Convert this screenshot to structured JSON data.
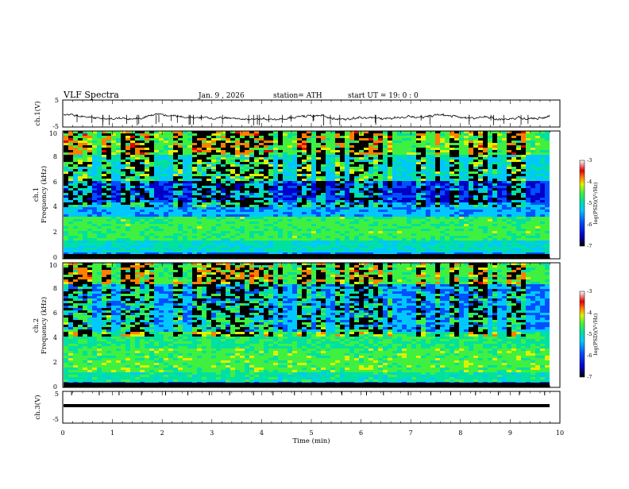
{
  "header": {
    "title": "VLF  Spectra",
    "date": "Jan.  9  , 2026",
    "station": "station= ATH",
    "start": "start  UT  =    19: 0   : 0"
  },
  "colors": {
    "ink": "#000000",
    "colormap": [
      "#000000",
      "#0000c8",
      "#0050ff",
      "#00c8ff",
      "#00e0a0",
      "#40f040",
      "#e0f000",
      "#ff8000",
      "#e00000",
      "#ffffff"
    ]
  },
  "chart_data": {
    "type": "heatmap",
    "xlabel": "Time  (min)",
    "xlim": [
      0,
      10
    ],
    "x_ticks": [
      "0",
      "1",
      "2",
      "3",
      "4",
      "5",
      "6",
      "7",
      "8",
      "9",
      "10"
    ],
    "ch1_wave": {
      "ylabel": "ch.1(V)",
      "y_ticks": [
        "5",
        "-5"
      ],
      "ylim": [
        -5,
        5
      ]
    },
    "ch1_spectrogram": {
      "ylabel_channel": "ch.1",
      "ylabel": "Frequency  (kHz)",
      "y_ticks": [
        "0",
        "2",
        "4",
        "6",
        "8",
        "10"
      ],
      "ylim": [
        0,
        10
      ],
      "colorbar_label": "log(PSD)(V²/Hz)",
      "colorbar_ticks": [
        "-3",
        "-4",
        "-5",
        "-6",
        "-7"
      ]
    },
    "ch2_spectrogram": {
      "ylabel_channel": "ch.2",
      "ylabel": "Frequency  (kHz)",
      "y_ticks": [
        "0",
        "2",
        "4",
        "6",
        "8",
        "10"
      ],
      "ylim": [
        0,
        10
      ],
      "colorbar_label": "log(PSD)(V²/Hz)",
      "colorbar_ticks": [
        "-3",
        "-4",
        "-5",
        "-6",
        "-7"
      ]
    },
    "ch3_wave": {
      "ylabel": "ch.3(V)",
      "y_ticks": [
        "5",
        "-5"
      ],
      "ylim": [
        -5,
        5
      ]
    }
  }
}
